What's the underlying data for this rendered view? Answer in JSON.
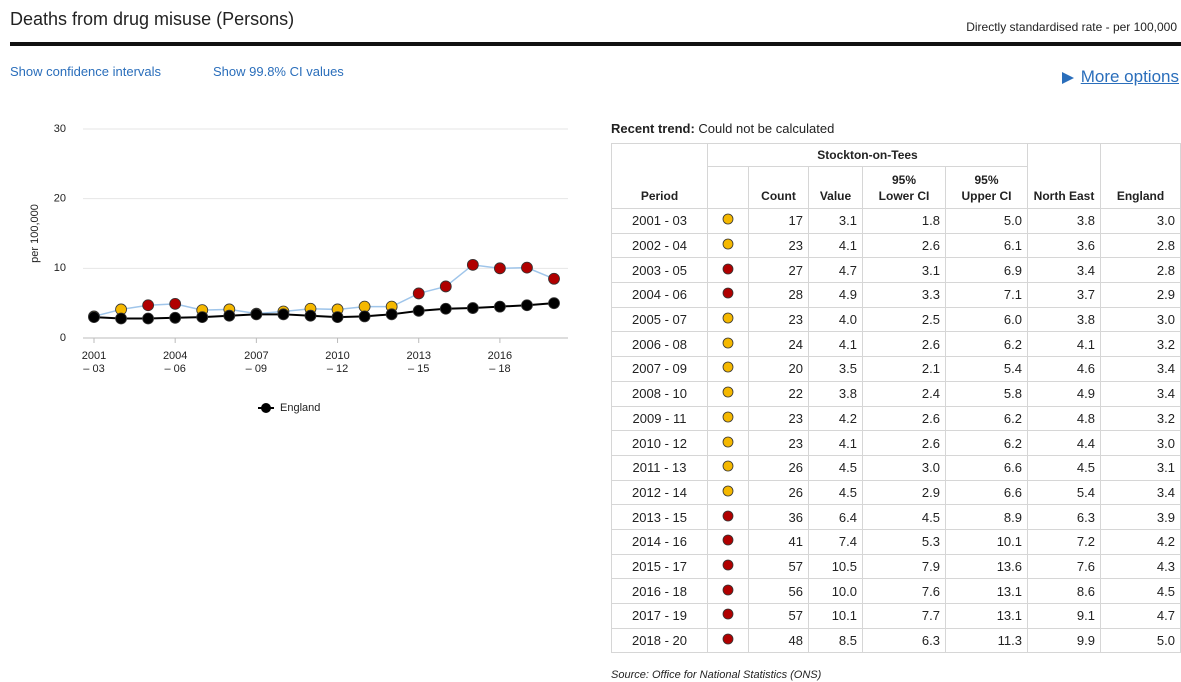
{
  "header": {
    "title": "Deaths from drug misuse (Persons)",
    "subtitle": "Directly standardised rate - per 100,000"
  },
  "links": [
    "Show confidence intervals",
    "Show 99.8% CI values"
  ],
  "more_options": "More options",
  "chart_data": {
    "type": "line",
    "ylabel": "per 100,000",
    "categories": [
      "2001 – 03",
      null,
      null,
      "2004 – 06",
      null,
      null,
      "2007 – 09",
      null,
      null,
      "2010 – 12",
      null,
      null,
      "2013 – 15",
      null,
      null,
      "2016 – 18",
      null,
      null
    ],
    "ylim": [
      0,
      30
    ],
    "yticks": [
      0,
      10,
      20,
      30
    ],
    "grid": true,
    "legend": "bottom",
    "series": [
      {
        "color": "#9fc5ea",
        "marker_colors": [
          "#f5b800",
          "#f5b800",
          "#b00000",
          "#b00000",
          "#f5b800",
          "#f5b800",
          "#f5b800",
          "#f5b800",
          "#f5b800",
          "#f5b800",
          "#f5b800",
          "#f5b800",
          "#b00000",
          "#b00000",
          "#b00000",
          "#b00000",
          "#b00000",
          "#b00000"
        ],
        "values": [
          3.1,
          4.1,
          4.7,
          4.9,
          4.0,
          4.1,
          3.5,
          3.8,
          4.2,
          4.1,
          4.5,
          4.5,
          6.4,
          7.4,
          10.5,
          10.0,
          10.1,
          8.5
        ]
      },
      {
        "name": "England",
        "color": "#000000",
        "values": [
          3.0,
          2.8,
          2.8,
          2.9,
          3.0,
          3.2,
          3.4,
          3.4,
          3.2,
          3.0,
          3.1,
          3.4,
          3.9,
          4.2,
          4.3,
          4.5,
          4.7,
          5.0
        ]
      }
    ]
  },
  "trend": {
    "label": "Recent trend:",
    "value": "Could not be calculated"
  },
  "table": {
    "group_header": "Stockton-on-Tees",
    "columns": [
      "Period",
      "Count",
      "Value",
      [
        "95%",
        "Lower CI"
      ],
      [
        "95%",
        "Upper CI"
      ],
      "North East",
      "England"
    ],
    "markers": [
      "#f5b800",
      "#f5b800",
      "#b00000",
      "#b00000",
      "#f5b800",
      "#f5b800",
      "#f5b800",
      "#f5b800",
      "#f5b800",
      "#f5b800",
      "#f5b800",
      "#f5b800",
      "#b00000",
      "#b00000",
      "#b00000",
      "#b00000",
      "#b00000",
      "#b00000"
    ],
    "rows": [
      [
        "2001 - 03",
        "17",
        "3.1",
        "1.8",
        "5.0",
        "3.8",
        "3.0"
      ],
      [
        "2002 - 04",
        "23",
        "4.1",
        "2.6",
        "6.1",
        "3.6",
        "2.8"
      ],
      [
        "2003 - 05",
        "27",
        "4.7",
        "3.1",
        "6.9",
        "3.4",
        "2.8"
      ],
      [
        "2004 - 06",
        "28",
        "4.9",
        "3.3",
        "7.1",
        "3.7",
        "2.9"
      ],
      [
        "2005 - 07",
        "23",
        "4.0",
        "2.5",
        "6.0",
        "3.8",
        "3.0"
      ],
      [
        "2006 - 08",
        "24",
        "4.1",
        "2.6",
        "6.2",
        "4.1",
        "3.2"
      ],
      [
        "2007 - 09",
        "20",
        "3.5",
        "2.1",
        "5.4",
        "4.6",
        "3.4"
      ],
      [
        "2008 - 10",
        "22",
        "3.8",
        "2.4",
        "5.8",
        "4.9",
        "3.4"
      ],
      [
        "2009 - 11",
        "23",
        "4.2",
        "2.6",
        "6.2",
        "4.8",
        "3.2"
      ],
      [
        "2010 - 12",
        "23",
        "4.1",
        "2.6",
        "6.2",
        "4.4",
        "3.0"
      ],
      [
        "2011 - 13",
        "26",
        "4.5",
        "3.0",
        "6.6",
        "4.5",
        "3.1"
      ],
      [
        "2012 - 14",
        "26",
        "4.5",
        "2.9",
        "6.6",
        "5.4",
        "3.4"
      ],
      [
        "2013 - 15",
        "36",
        "6.4",
        "4.5",
        "8.9",
        "6.3",
        "3.9"
      ],
      [
        "2014 - 16",
        "41",
        "7.4",
        "5.3",
        "10.1",
        "7.2",
        "4.2"
      ],
      [
        "2015 - 17",
        "57",
        "10.5",
        "7.9",
        "13.6",
        "7.6",
        "4.3"
      ],
      [
        "2016 - 18",
        "56",
        "10.0",
        "7.6",
        "13.1",
        "8.6",
        "4.5"
      ],
      [
        "2017 - 19",
        "57",
        "10.1",
        "7.7",
        "13.1",
        "9.1",
        "4.7"
      ],
      [
        "2018 - 20",
        "48",
        "8.5",
        "6.3",
        "11.3",
        "9.9",
        "5.0"
      ]
    ]
  },
  "source": "Source: Office for National Statistics (ONS)"
}
